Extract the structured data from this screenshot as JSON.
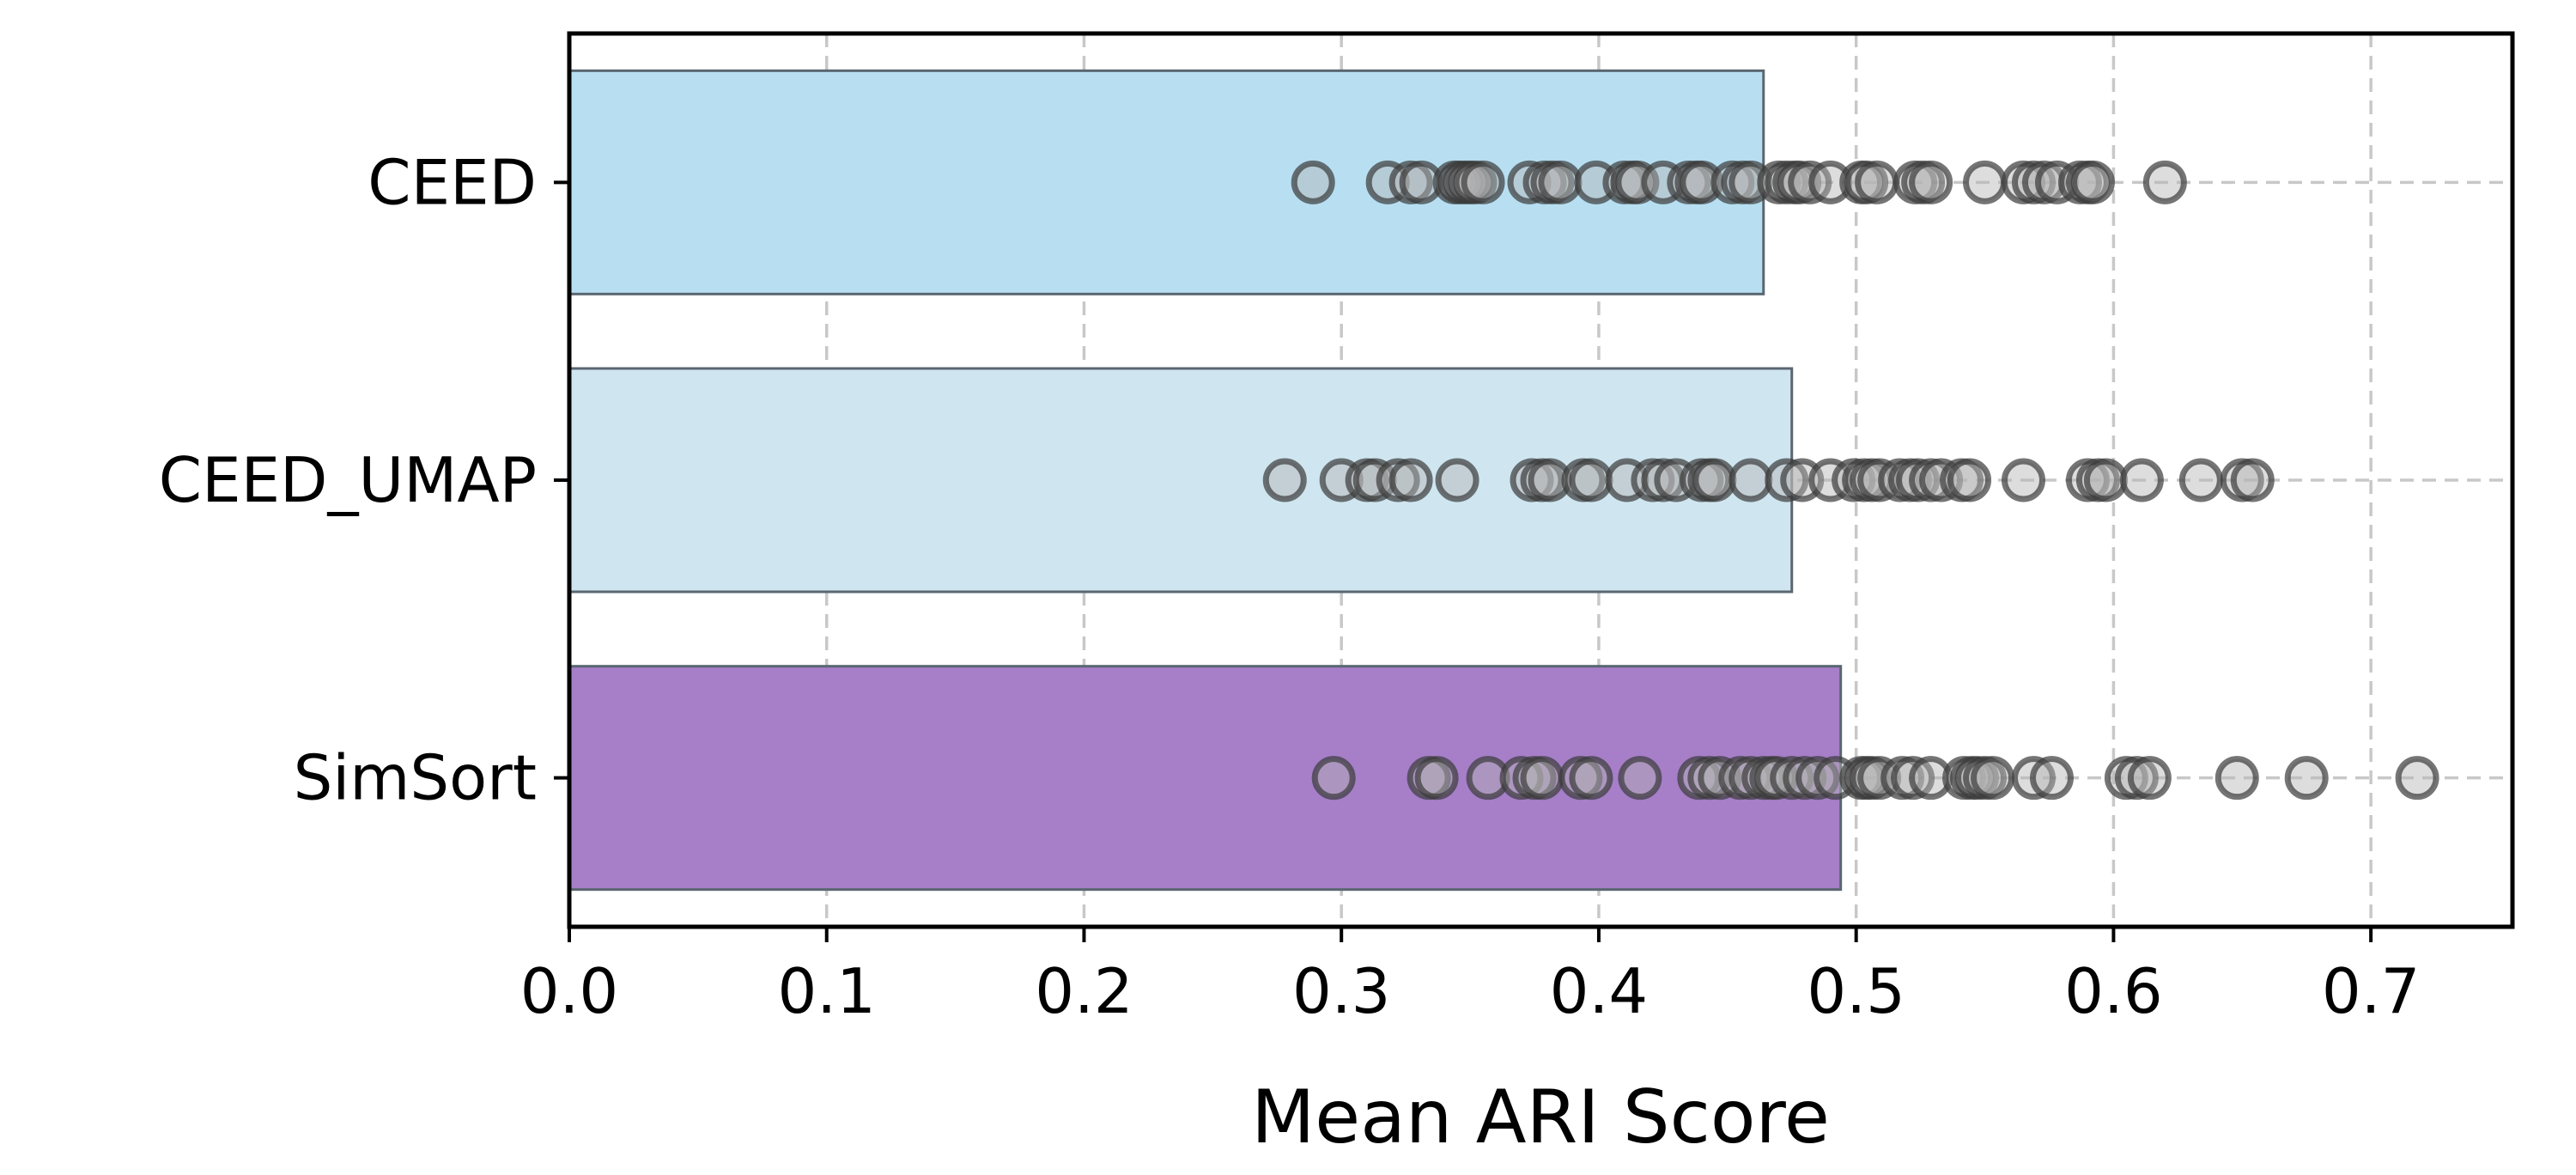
{
  "chart_data": {
    "type": "bar",
    "orientation": "horizontal",
    "title": "",
    "xlabel": "Mean ARI Score",
    "ylabel": "",
    "xlim": [
      0,
      0.755
    ],
    "x_ticks": [
      "0.0",
      "0.1",
      "0.2",
      "0.3",
      "0.4",
      "0.5",
      "0.6",
      "0.7"
    ],
    "grid": true,
    "legend": "none",
    "categories": [
      "CEED",
      "CEED_UMAP",
      "SimSort"
    ],
    "values": [
      0.464,
      0.475,
      0.494
    ],
    "bar_colors": [
      "#b7dff1",
      "#cfe6f0",
      "#a67fc8"
    ],
    "bar_edge_color": "#5a6670",
    "point_edge_color": "#3a3a3a",
    "point_fill_color": "#b4b4b4",
    "points": [
      [
        0.289,
        0.318,
        0.327,
        0.331,
        0.344,
        0.346,
        0.348,
        0.35,
        0.352,
        0.355,
        0.373,
        0.379,
        0.382,
        0.385,
        0.399,
        0.41,
        0.413,
        0.415,
        0.425,
        0.435,
        0.438,
        0.44,
        0.452,
        0.456,
        0.459,
        0.47,
        0.473,
        0.476,
        0.478,
        0.482,
        0.49,
        0.502,
        0.504,
        0.508,
        0.523,
        0.526,
        0.529,
        0.55,
        0.565,
        0.569,
        0.573,
        0.578,
        0.587,
        0.59,
        0.592,
        0.62
      ],
      [
        0.278,
        0.3,
        0.31,
        0.313,
        0.322,
        0.327,
        0.345,
        0.374,
        0.378,
        0.381,
        0.394,
        0.397,
        0.411,
        0.421,
        0.425,
        0.43,
        0.44,
        0.443,
        0.445,
        0.459,
        0.473,
        0.479,
        0.49,
        0.499,
        0.503,
        0.506,
        0.509,
        0.517,
        0.521,
        0.524,
        0.529,
        0.533,
        0.541,
        0.544,
        0.565,
        0.59,
        0.594,
        0.597,
        0.611,
        0.634,
        0.65,
        0.654
      ],
      [
        0.297,
        0.334,
        0.337,
        0.357,
        0.37,
        0.375,
        0.378,
        0.393,
        0.397,
        0.416,
        0.439,
        0.443,
        0.447,
        0.455,
        0.459,
        0.464,
        0.467,
        0.469,
        0.475,
        0.48,
        0.485,
        0.492,
        0.502,
        0.504,
        0.506,
        0.509,
        0.518,
        0.522,
        0.529,
        0.542,
        0.545,
        0.547,
        0.55,
        0.553,
        0.569,
        0.576,
        0.605,
        0.609,
        0.614,
        0.648,
        0.675,
        0.718
      ]
    ]
  }
}
